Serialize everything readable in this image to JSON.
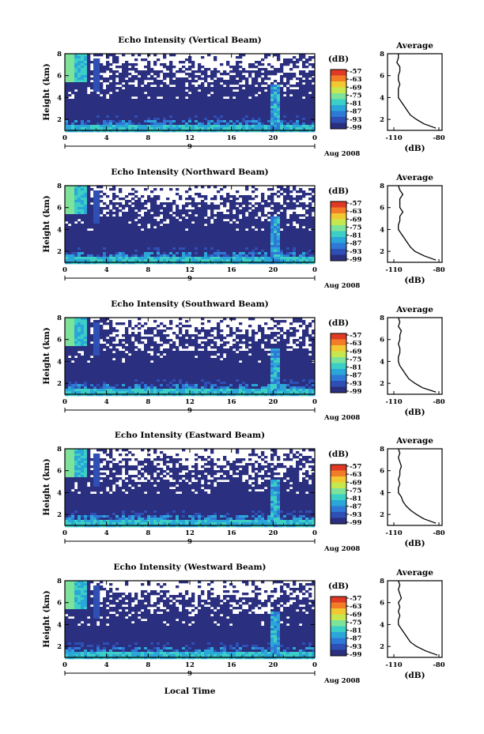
{
  "chart_data": [
    {
      "type": "heatmap",
      "title": "Echo Intensity (Vertical Beam)",
      "ylabel": "Height (km)",
      "ylim": [
        1,
        8
      ],
      "yticks": [
        "2",
        "4",
        "6",
        "8"
      ],
      "xticks": [
        "0",
        "4",
        "8",
        "12",
        "16",
        "20",
        "0"
      ],
      "xlim": [
        0,
        24
      ],
      "day_label": "9",
      "date_label": "Aug 2008",
      "colorbar": {
        "unit": "(dB)",
        "ticks": [
          "-57",
          "-63",
          "-69",
          "-75",
          "-81",
          "-87",
          "-93",
          "-99"
        ]
      },
      "profile": {
        "title": "Average",
        "xlabel": "(dB)",
        "xticks": [
          "-110",
          "-80"
        ],
        "xlim": [
          -110,
          -80
        ],
        "heights": [
          1.2,
          1.6,
          2,
          2.4,
          2.8,
          3.2,
          3.6,
          4,
          4.4,
          4.8,
          5.2,
          5.6,
          6,
          6.4,
          6.8,
          7.2,
          7.6,
          8
        ],
        "values": [
          -82,
          -90,
          -95,
          -99,
          -101,
          -103,
          -105,
          -107,
          -107,
          -107,
          -106,
          -107,
          -107,
          -106,
          -106,
          -108,
          -107,
          -107
        ]
      }
    },
    {
      "type": "heatmap",
      "title": "Echo Intensity (Northward Beam)",
      "ylabel": "Height (km)",
      "ylim": [
        1,
        8
      ],
      "yticks": [
        "2",
        "4",
        "6",
        "8"
      ],
      "xticks": [
        "0",
        "4",
        "8",
        "12",
        "16",
        "20",
        "0"
      ],
      "xlim": [
        0,
        24
      ],
      "day_label": "9",
      "date_label": "Aug 2008",
      "colorbar": {
        "unit": "(dB)",
        "ticks": [
          "-57",
          "-63",
          "-69",
          "-75",
          "-81",
          "-87",
          "-93",
          "-99"
        ]
      },
      "profile": {
        "title": "Average",
        "xlabel": "(dB)",
        "xticks": [
          "-110",
          "-80"
        ],
        "xlim": [
          -110,
          -80
        ],
        "heights": [
          1.2,
          1.6,
          2,
          2.4,
          2.8,
          3.2,
          3.6,
          4,
          4.4,
          4.8,
          5.2,
          5.6,
          6,
          6.4,
          6.8,
          7.2,
          7.6,
          8
        ],
        "values": [
          -82,
          -90,
          -96,
          -99,
          -101,
          -103,
          -105,
          -107,
          -107,
          -106,
          -106,
          -104,
          -106,
          -106,
          -106,
          -104,
          -106,
          -107
        ]
      }
    },
    {
      "type": "heatmap",
      "title": "Echo Intensity (Southward Beam)",
      "ylabel": "Height (km)",
      "ylim": [
        1,
        8
      ],
      "yticks": [
        "2",
        "4",
        "6",
        "8"
      ],
      "xticks": [
        "0",
        "4",
        "8",
        "12",
        "16",
        "20",
        "0"
      ],
      "xlim": [
        0,
        24
      ],
      "day_label": "9",
      "date_label": "Aug 2008",
      "colorbar": {
        "unit": "(dB)",
        "ticks": [
          "-57",
          "-63",
          "-69",
          "-75",
          "-81",
          "-87",
          "-93",
          "-99"
        ]
      },
      "profile": {
        "title": "Average",
        "xlabel": "(dB)",
        "xticks": [
          "-110",
          "-80"
        ],
        "xlim": [
          -110,
          -80
        ],
        "heights": [
          1.2,
          1.6,
          2,
          2.4,
          2.8,
          3.2,
          3.6,
          4,
          4.4,
          4.8,
          5.2,
          5.6,
          6,
          6.4,
          6.8,
          7.2,
          7.6,
          8
        ],
        "values": [
          -82,
          -91,
          -96,
          -100,
          -102,
          -104,
          -106,
          -107,
          -107,
          -106,
          -106,
          -107,
          -106,
          -106,
          -105,
          -107,
          -106,
          -107
        ]
      }
    },
    {
      "type": "heatmap",
      "title": "Echo Intensity (Eastward Beam)",
      "ylabel": "Height (km)",
      "ylim": [
        1,
        8
      ],
      "yticks": [
        "2",
        "4",
        "6",
        "8"
      ],
      "xticks": [
        "0",
        "4",
        "8",
        "12",
        "16",
        "20",
        "0"
      ],
      "xlim": [
        0,
        24
      ],
      "day_label": "9",
      "date_label": "Aug 2008",
      "colorbar": {
        "unit": "(dB)",
        "ticks": [
          "-57",
          "-63",
          "-69",
          "-75",
          "-81",
          "-87",
          "-93",
          "-99"
        ]
      },
      "profile": {
        "title": "Average",
        "xlabel": "(dB)",
        "xticks": [
          "-110",
          "-80"
        ],
        "xlim": [
          -110,
          -80
        ],
        "heights": [
          1.2,
          1.6,
          2,
          2.4,
          2.8,
          3.2,
          3.6,
          4,
          4.4,
          4.8,
          5.2,
          5.6,
          6,
          6.4,
          6.8,
          7.2,
          7.6,
          8
        ],
        "values": [
          -82,
          -90,
          -95,
          -99,
          -102,
          -104,
          -105,
          -107,
          -107,
          -106,
          -107,
          -106,
          -106,
          -105,
          -106,
          -107,
          -106,
          -107
        ]
      }
    },
    {
      "type": "heatmap",
      "title": "Echo Intensity (Westward Beam)",
      "ylabel": "Height (km)",
      "ylim": [
        1,
        8
      ],
      "yticks": [
        "2",
        "4",
        "6",
        "8"
      ],
      "xticks": [
        "0",
        "4",
        "8",
        "12",
        "16",
        "20",
        "0"
      ],
      "xlim": [
        0,
        24
      ],
      "day_label": "9",
      "date_label": "Aug 2008",
      "colorbar": {
        "unit": "(dB)",
        "ticks": [
          "-57",
          "-63",
          "-69",
          "-75",
          "-81",
          "-87",
          "-93",
          "-99"
        ]
      },
      "profile": {
        "title": "Average",
        "xlabel": "(dB)",
        "xticks": [
          "-110",
          "-80"
        ],
        "xlim": [
          -110,
          -80
        ],
        "heights": [
          1.2,
          1.6,
          2,
          2.4,
          2.8,
          3.2,
          3.6,
          4,
          4.4,
          4.8,
          5.2,
          5.6,
          6,
          6.4,
          6.8,
          7.2,
          7.6,
          8
        ],
        "values": [
          -81,
          -89,
          -95,
          -99,
          -101,
          -103,
          -105,
          -107,
          -107,
          -106,
          -107,
          -106,
          -107,
          -105,
          -106,
          -107,
          -106,
          -107
        ]
      }
    }
  ],
  "xlabel": "Local Time",
  "colors": {
    "scale": [
      "#2b2f7f",
      "#2e4fb4",
      "#2e78d6",
      "#2aa6d8",
      "#3ccfc6",
      "#7ee39a",
      "#c6e84e",
      "#f2c832",
      "#f27c28",
      "#e03a24"
    ],
    "dark": "#2b2f7f"
  }
}
